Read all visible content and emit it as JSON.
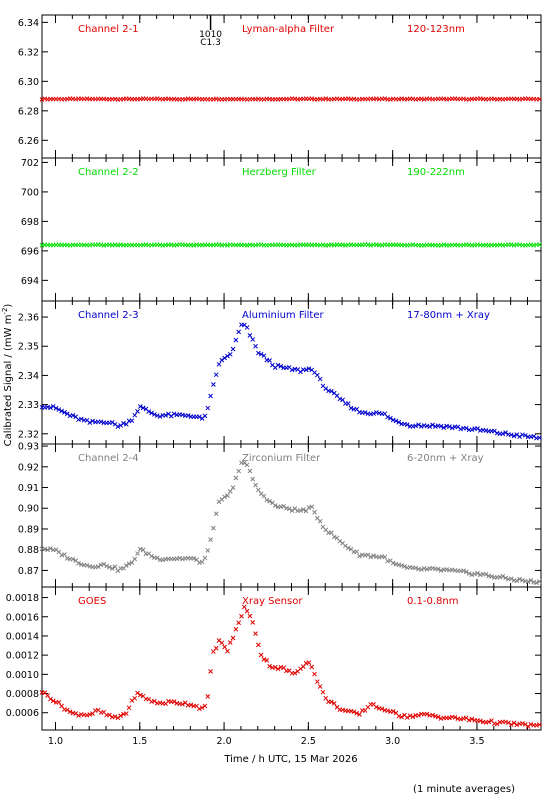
{
  "figure": {
    "ylabel": "Calibrated Signal / (mW m",
    "ylabel_sup": "-2",
    "ylabel_end": ")",
    "xlabel": "Time / h UTC, 15 Mar 2026",
    "footnote": "(1 minute averages)",
    "event_marker": {
      "time": 1.92,
      "label_top": "1010",
      "label_bottom": "C1.3"
    }
  },
  "chart_data": [
    {
      "type": "scatter",
      "channel": "Channel 2-1",
      "filter": "Lyman-alpha Filter",
      "band": "120-123nm",
      "color": "#e00000",
      "xlim": [
        0.92,
        3.88
      ],
      "ylim": [
        6.248,
        6.345
      ],
      "yticks": [
        6.26,
        6.28,
        6.3,
        6.32,
        6.34
      ],
      "yticklabels": [
        "6.26",
        "6.28",
        "6.30",
        "6.32",
        "6.34"
      ],
      "profile": "flat",
      "base": 6.288,
      "amplitude": 0
    },
    {
      "type": "scatter",
      "channel": "Channel 2-2",
      "filter": "Herzberg Filter",
      "band": "190-222nm",
      "color": "#00dd00",
      "xlim": [
        0.92,
        3.88
      ],
      "ylim": [
        692.6,
        702.3
      ],
      "yticks": [
        694,
        696,
        698,
        700,
        702
      ],
      "yticklabels": [
        "694",
        "696",
        "698",
        "700",
        "702"
      ],
      "profile": "flat",
      "base": 696.4,
      "amplitude": 0
    },
    {
      "type": "scatter",
      "channel": "Channel 2-3",
      "filter": "Aluminium Filter",
      "band": "17-80nm + Xray",
      "color": "#0000cc",
      "xlim": [
        0.92,
        3.88
      ],
      "ylim": [
        2.3165,
        2.3655
      ],
      "yticks": [
        2.32,
        2.33,
        2.34,
        2.35,
        2.36
      ],
      "yticklabels": [
        "2.32",
        "2.33",
        "2.34",
        "2.35",
        "2.36"
      ],
      "profile": "euv",
      "base": 2.3185,
      "amplitude": 0.0412
    },
    {
      "type": "scatter",
      "channel": "Channel 2-4",
      "filter": "Zirconium Filter",
      "band": "6-20nm + Xray",
      "color": "#808080",
      "xlim": [
        0.92,
        3.88
      ],
      "ylim": [
        0.862,
        0.931
      ],
      "yticks": [
        0.87,
        0.88,
        0.89,
        0.9,
        0.91,
        0.92,
        0.93
      ],
      "yticklabels": [
        "0.87",
        "0.88",
        "0.89",
        "0.90",
        "0.91",
        "0.92",
        "0.93"
      ],
      "profile": "euv",
      "base": 0.864,
      "amplitude": 0.062
    },
    {
      "type": "scatter",
      "channel": "GOES",
      "filter": "Xray Sensor",
      "band": "0.1-0.8nm",
      "color": "#e00000",
      "xlim": [
        0.92,
        3.88
      ],
      "ylim": [
        0.00042,
        0.00191
      ],
      "yticks": [
        0.0006,
        0.0008,
        0.001,
        0.0012,
        0.0014,
        0.0016,
        0.0018
      ],
      "yticklabels": [
        "0.0006",
        "0.0008",
        "0.0010",
        "0.0012",
        "0.0014",
        "0.0016",
        "0.0018"
      ],
      "profile": "xray",
      "base": 0.0,
      "amplitude": 1.0
    }
  ],
  "xaxis": {
    "ticks": [
      1.0,
      1.5,
      2.0,
      2.5,
      3.0,
      3.5
    ],
    "ticklabels": [
      "1.0",
      "1.5",
      "2.0",
      "2.5",
      "3.0",
      "3.5"
    ]
  }
}
